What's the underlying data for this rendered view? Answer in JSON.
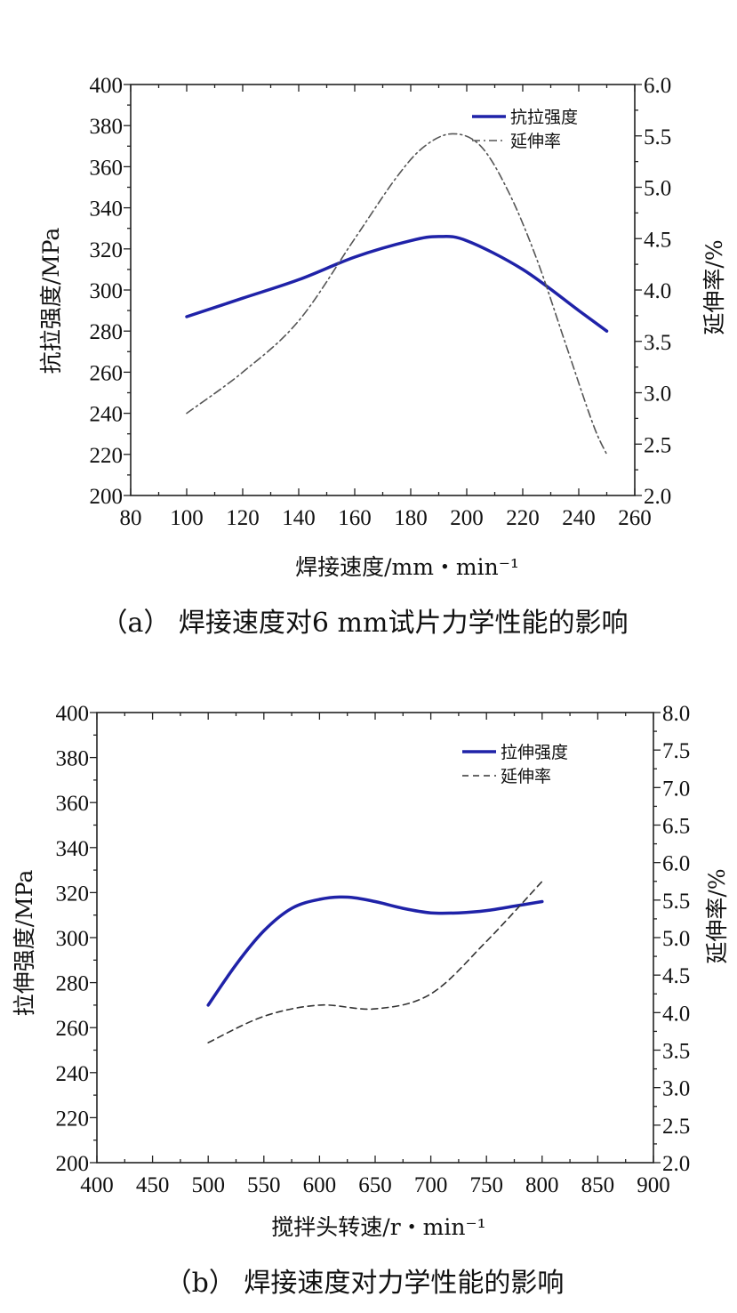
{
  "chart_data": [
    {
      "type": "line",
      "caption": "（a） 焊接速度对6 mm试片力学性能的影响",
      "xlabel": "焊接速度/mm・min⁻¹",
      "ylabel": "抗拉强度/MPa",
      "y2label": "延伸率/%",
      "xlim": [
        80,
        260
      ],
      "xticks": [
        80,
        100,
        120,
        140,
        160,
        180,
        200,
        220,
        240,
        260
      ],
      "ylim": [
        200,
        400
      ],
      "yticks": [
        200,
        220,
        240,
        260,
        280,
        300,
        320,
        340,
        360,
        380,
        400
      ],
      "y2lim": [
        2.0,
        6.0
      ],
      "y2ticks": [
        "2.0",
        "2.5",
        "3.0",
        "3.5",
        "4.0",
        "4.5",
        "5.0",
        "5.5",
        "6.0"
      ],
      "legend_position": "top-right",
      "series": [
        {
          "name": "抗拉强度",
          "axis": "left",
          "color": "#1f22a8",
          "style": "solid",
          "x": [
            100,
            120,
            140,
            160,
            180,
            190,
            200,
            220,
            240,
            250
          ],
          "y": [
            287,
            296,
            305,
            316,
            324,
            326,
            324,
            310,
            290,
            280
          ]
        },
        {
          "name": "延伸率",
          "axis": "right",
          "color": "#555555",
          "style": "dashdot",
          "x": [
            100,
            120,
            140,
            160,
            175,
            185,
            195,
            205,
            215,
            225,
            235,
            245,
            250
          ],
          "y": [
            2.8,
            3.2,
            3.7,
            4.5,
            5.1,
            5.4,
            5.52,
            5.4,
            4.95,
            4.3,
            3.5,
            2.7,
            2.4
          ]
        }
      ]
    },
    {
      "type": "line",
      "caption": "（b） 焊接速度对力学性能的影响",
      "xlabel": "搅拌头转速/r・min⁻¹",
      "ylabel": "拉伸强度/MPa",
      "y2label": "延伸率/%",
      "xlim": [
        400,
        900
      ],
      "xticks": [
        400,
        450,
        500,
        550,
        600,
        650,
        700,
        750,
        800,
        850,
        900
      ],
      "ylim": [
        200,
        400
      ],
      "yticks": [
        200,
        220,
        240,
        260,
        280,
        300,
        320,
        340,
        360,
        380,
        400
      ],
      "y2lim": [
        2.0,
        8.0
      ],
      "y2ticks": [
        "2.0",
        "2.5",
        "3.0",
        "3.5",
        "4.0",
        "4.5",
        "5.0",
        "5.5",
        "6.0",
        "6.5",
        "7.0",
        "7.5",
        "8.0"
      ],
      "legend_position": "top-right",
      "series": [
        {
          "name": "拉伸强度",
          "axis": "left",
          "color": "#1f22a8",
          "style": "solid",
          "x": [
            500,
            525,
            550,
            575,
            600,
            625,
            650,
            675,
            700,
            725,
            750,
            775,
            800
          ],
          "y": [
            270,
            288,
            303,
            313,
            317,
            318,
            316,
            313,
            311,
            311,
            312,
            314,
            316
          ]
        },
        {
          "name": "延伸率",
          "axis": "right",
          "color": "#333333",
          "style": "dashed",
          "x": [
            500,
            550,
            600,
            650,
            700,
            750,
            800
          ],
          "y": [
            3.6,
            3.95,
            4.1,
            4.05,
            4.25,
            4.95,
            5.75
          ]
        }
      ]
    }
  ]
}
